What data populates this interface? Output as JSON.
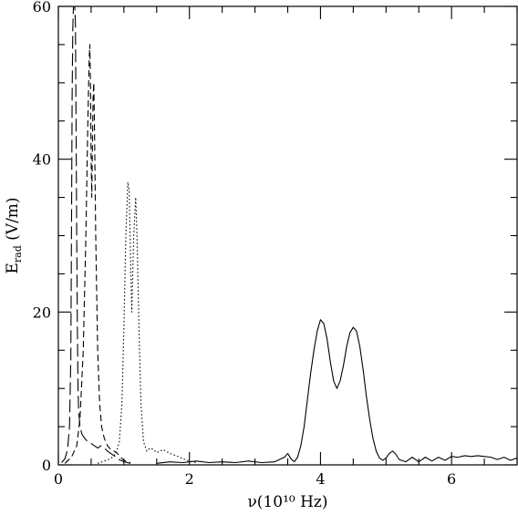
{
  "chart_data": {
    "type": "line",
    "xlabel": "ν(10¹⁰ Hz)",
    "ylabel_main": "E",
    "ylabel_sub": "rad",
    "ylabel_unit": " (V/m)",
    "xlim": [
      0,
      7
    ],
    "ylim": [
      0,
      60
    ],
    "xticks": [
      0,
      2,
      4,
      6
    ],
    "yticks": [
      0,
      20,
      40,
      60
    ],
    "grid": false,
    "series": [
      {
        "style": "long-dash",
        "points": [
          [
            0.05,
            0.3
          ],
          [
            0.1,
            0.8
          ],
          [
            0.14,
            2.0
          ],
          [
            0.17,
            5
          ],
          [
            0.19,
            14
          ],
          [
            0.2,
            30
          ],
          [
            0.21,
            48
          ],
          [
            0.22,
            57
          ],
          [
            0.23,
            60
          ],
          [
            0.24,
            60
          ],
          [
            0.25,
            60
          ],
          [
            0.26,
            58
          ],
          [
            0.27,
            45
          ],
          [
            0.28,
            30
          ],
          [
            0.29,
            18
          ],
          [
            0.3,
            10
          ],
          [
            0.31,
            7
          ],
          [
            0.33,
            5
          ],
          [
            0.36,
            4
          ],
          [
            0.4,
            3.5
          ],
          [
            0.45,
            3
          ],
          [
            0.5,
            2.8
          ],
          [
            0.55,
            2.5
          ],
          [
            0.6,
            2.2
          ],
          [
            0.65,
            2.5
          ],
          [
            0.7,
            2.2
          ],
          [
            0.75,
            1.8
          ],
          [
            0.8,
            1.5
          ],
          [
            0.85,
            1.2
          ],
          [
            0.9,
            0.8
          ],
          [
            1.0,
            0.4
          ],
          [
            1.1,
            0.2
          ]
        ]
      },
      {
        "style": "short-dash",
        "points": [
          [
            0.1,
            0.2
          ],
          [
            0.2,
            1.0
          ],
          [
            0.28,
            2.5
          ],
          [
            0.33,
            6
          ],
          [
            0.38,
            15
          ],
          [
            0.42,
            30
          ],
          [
            0.45,
            45
          ],
          [
            0.47,
            53
          ],
          [
            0.48,
            55
          ],
          [
            0.49,
            50
          ],
          [
            0.5,
            40
          ],
          [
            0.51,
            35
          ],
          [
            0.52,
            42
          ],
          [
            0.53,
            48
          ],
          [
            0.54,
            50
          ],
          [
            0.55,
            45
          ],
          [
            0.57,
            30
          ],
          [
            0.6,
            15
          ],
          [
            0.63,
            8
          ],
          [
            0.66,
            5
          ],
          [
            0.7,
            3.5
          ],
          [
            0.75,
            2.5
          ],
          [
            0.8,
            2.0
          ],
          [
            0.85,
            1.8
          ],
          [
            0.9,
            1.5
          ],
          [
            0.95,
            1.0
          ],
          [
            1.0,
            0.6
          ],
          [
            1.1,
            0.3
          ]
        ]
      },
      {
        "style": "dotted",
        "points": [
          [
            0.6,
            0.2
          ],
          [
            0.7,
            0.5
          ],
          [
            0.8,
            0.8
          ],
          [
            0.88,
            1.5
          ],
          [
            0.93,
            3
          ],
          [
            0.97,
            8
          ],
          [
            1.0,
            18
          ],
          [
            1.03,
            30
          ],
          [
            1.06,
            37
          ],
          [
            1.08,
            36
          ],
          [
            1.1,
            28
          ],
          [
            1.12,
            20
          ],
          [
            1.15,
            30
          ],
          [
            1.18,
            35
          ],
          [
            1.2,
            30
          ],
          [
            1.23,
            18
          ],
          [
            1.26,
            8
          ],
          [
            1.3,
            3
          ],
          [
            1.35,
            1.8
          ],
          [
            1.4,
            2.2
          ],
          [
            1.45,
            2.0
          ],
          [
            1.5,
            1.6
          ],
          [
            1.6,
            2.0
          ],
          [
            1.7,
            1.5
          ],
          [
            1.8,
            1.2
          ],
          [
            1.9,
            0.8
          ],
          [
            2.0,
            0.5
          ],
          [
            2.1,
            0.3
          ]
        ]
      },
      {
        "style": "solid",
        "points": [
          [
            1.5,
            0.2
          ],
          [
            1.7,
            0.4
          ],
          [
            1.9,
            0.3
          ],
          [
            2.1,
            0.5
          ],
          [
            2.3,
            0.3
          ],
          [
            2.5,
            0.4
          ],
          [
            2.7,
            0.3
          ],
          [
            2.9,
            0.5
          ],
          [
            3.1,
            0.3
          ],
          [
            3.3,
            0.4
          ],
          [
            3.45,
            1.0
          ],
          [
            3.5,
            1.5
          ],
          [
            3.55,
            0.8
          ],
          [
            3.6,
            0.4
          ],
          [
            3.65,
            1.0
          ],
          [
            3.7,
            2.5
          ],
          [
            3.75,
            5
          ],
          [
            3.8,
            8.5
          ],
          [
            3.85,
            12
          ],
          [
            3.9,
            15
          ],
          [
            3.95,
            17.5
          ],
          [
            4.0,
            19
          ],
          [
            4.05,
            18.5
          ],
          [
            4.1,
            16.5
          ],
          [
            4.15,
            13.5
          ],
          [
            4.2,
            11
          ],
          [
            4.25,
            10
          ],
          [
            4.3,
            11
          ],
          [
            4.35,
            13
          ],
          [
            4.4,
            15.5
          ],
          [
            4.45,
            17.3
          ],
          [
            4.5,
            18
          ],
          [
            4.55,
            17.5
          ],
          [
            4.6,
            15.5
          ],
          [
            4.65,
            12.5
          ],
          [
            4.7,
            9
          ],
          [
            4.75,
            6
          ],
          [
            4.8,
            3.5
          ],
          [
            4.85,
            1.8
          ],
          [
            4.9,
            0.9
          ],
          [
            4.95,
            0.6
          ],
          [
            5.0,
            0.9
          ],
          [
            5.05,
            1.5
          ],
          [
            5.1,
            1.8
          ],
          [
            5.15,
            1.4
          ],
          [
            5.2,
            0.7
          ],
          [
            5.3,
            0.4
          ],
          [
            5.4,
            1.0
          ],
          [
            5.5,
            0.4
          ],
          [
            5.6,
            1.0
          ],
          [
            5.7,
            0.5
          ],
          [
            5.8,
            1.0
          ],
          [
            5.9,
            0.6
          ],
          [
            6.0,
            1.1
          ],
          [
            6.1,
            1.0
          ],
          [
            6.2,
            1.2
          ],
          [
            6.3,
            1.1
          ],
          [
            6.4,
            1.2
          ],
          [
            6.5,
            1.1
          ],
          [
            6.6,
            1.0
          ],
          [
            6.7,
            0.7
          ],
          [
            6.8,
            1.0
          ],
          [
            6.9,
            0.6
          ],
          [
            7.0,
            0.9
          ]
        ]
      }
    ]
  }
}
